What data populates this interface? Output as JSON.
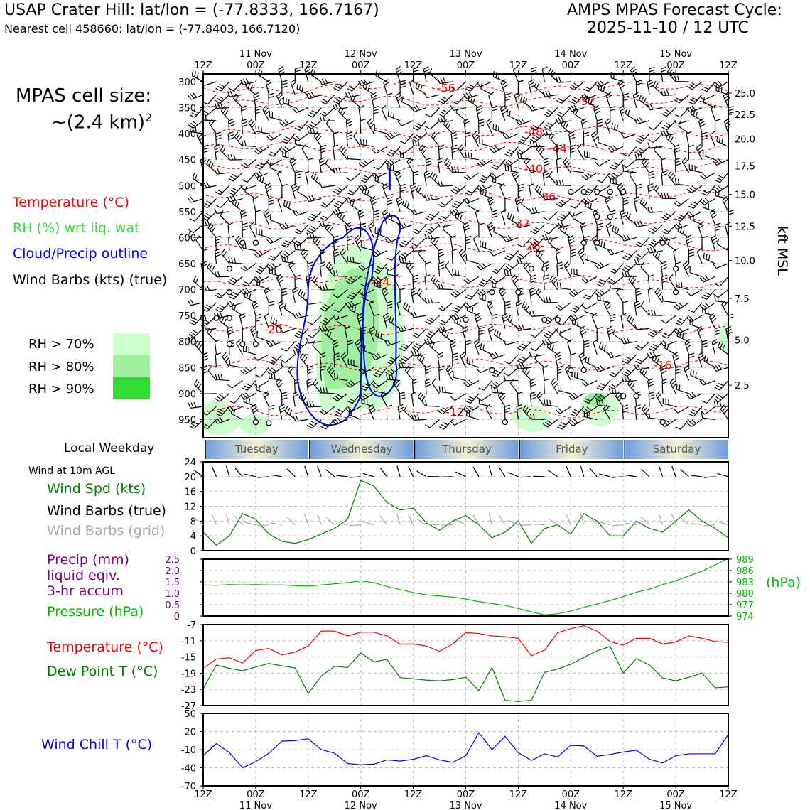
{
  "header": {
    "station": "USAP Crater Hill: lat/lon = (-77.8333, 166.7167)",
    "nearest_cell": "Nearest cell 458660: lat/lon = (-77.8403, 166.7120)",
    "forecast_title": "AMPS MPAS Forecast Cycle:",
    "forecast_cycle": "2025-11-10 / 12 UTC",
    "cell_size_label": "MPAS cell size:",
    "cell_size_value": "~(2.4 km)",
    "cell_size_exp": "2"
  },
  "colors": {
    "temperature": "#ff0000",
    "rh": "#33dd33",
    "cloud": "#0000ff",
    "wind_speed": "#008000",
    "grid_barbs": "#a9a9a9",
    "precip": "#800080",
    "pressure": "#00bb00",
    "dewpoint": "#008000",
    "wind_chill": "#0000ff",
    "rh70": "#ccffcc",
    "rh80": "#a0eea0",
    "rh90": "#33dd33",
    "day_blue": "#6f9de0",
    "day_cream": "#f4f1d0"
  },
  "legend": {
    "temperature": "Temperature (°C)",
    "rh": "RH (%) wrt liq. wat",
    "cloud": "Cloud/Precip outline",
    "wind_barbs": "Wind Barbs (kts) (true)",
    "rh70": "RH > 70%",
    "rh80": "RH > 80%",
    "rh90": "RH > 90%",
    "local_weekday": "Local Weekday",
    "wind10m": "Wind at 10m AGL",
    "wind_spd": "Wind Spd (kts)",
    "wind_barbs_true": "Wind Barbs (true)",
    "wind_barbs_grid": "Wind Barbs (grid)",
    "precip_1": "Precip (mm)",
    "precip_2": "liquid eqiv.",
    "precip_3": "3-hr accum",
    "pressure": "Pressure (hPa)",
    "temp2": "Temperature (°C)",
    "dewpoint": "Dew Point T (°C)",
    "wind_chill": "Wind Chill T (°C)",
    "kft_msl": "kft MSL",
    "hpa": "(hPa)"
  },
  "chart_data": {
    "x_hours": [
      0,
      3,
      6,
      9,
      12,
      15,
      18,
      21,
      24,
      27,
      30,
      33,
      36,
      39,
      42,
      45,
      48,
      51,
      54,
      57,
      60,
      63,
      66,
      69,
      72,
      75,
      78,
      81,
      84,
      87,
      90,
      93,
      96,
      99,
      102,
      105,
      108,
      111,
      114,
      117,
      120
    ],
    "x_range_hours": [
      0,
      120
    ],
    "time_ticks_top": [
      {
        "hour": 0,
        "label": "12Z",
        "date": ""
      },
      {
        "hour": 12,
        "label": "00Z",
        "date": "11 Nov"
      },
      {
        "hour": 24,
        "label": "12Z",
        "date": ""
      },
      {
        "hour": 36,
        "label": "00Z",
        "date": "12 Nov"
      },
      {
        "hour": 48,
        "label": "12Z",
        "date": ""
      },
      {
        "hour": 60,
        "label": "00Z",
        "date": "13 Nov"
      },
      {
        "hour": 72,
        "label": "12Z",
        "date": ""
      },
      {
        "hour": 84,
        "label": "00Z",
        "date": "14 Nov"
      },
      {
        "hour": 96,
        "label": "12Z",
        "date": ""
      },
      {
        "hour": 108,
        "label": "00Z",
        "date": "15 Nov"
      },
      {
        "hour": 120,
        "label": "12Z",
        "date": ""
      }
    ],
    "weekdays": [
      "Tuesday",
      "Wednesday",
      "Thursday",
      "Friday",
      "Saturday"
    ],
    "cross_section": {
      "type": "time-height cross section",
      "pressure_ticks": [
        300,
        350,
        400,
        450,
        500,
        550,
        600,
        650,
        700,
        750,
        800,
        850,
        900,
        950
      ],
      "pressure_range": [
        285,
        985
      ],
      "kft_ticks": [
        {
          "p": 322,
          "label": "25.0"
        },
        {
          "p": 363,
          "label": "22.5"
        },
        {
          "p": 410,
          "label": "20.0"
        },
        {
          "p": 462,
          "label": "17.5"
        },
        {
          "p": 517,
          "label": "15.0"
        },
        {
          "p": 578,
          "label": "12.5"
        },
        {
          "p": 644,
          "label": "10.0"
        },
        {
          "p": 717,
          "label": "7.5"
        },
        {
          "p": 797,
          "label": "5.0"
        },
        {
          "p": 884,
          "label": "2.5"
        }
      ],
      "temperature_contour_labels": [
        {
          "label": "-56",
          "hour": 55.5,
          "p": 312
        },
        {
          "label": "-52",
          "hour": 87.5,
          "p": 337
        },
        {
          "label": "-48",
          "hour": 75.5,
          "p": 396
        },
        {
          "label": "-44",
          "hour": 81,
          "p": 428
        },
        {
          "label": "-40",
          "hour": 75.5,
          "p": 467
        },
        {
          "label": "-36",
          "hour": 78.5,
          "p": 521
        },
        {
          "label": "-32",
          "hour": 72.5,
          "p": 572
        },
        {
          "label": "-28",
          "hour": 75,
          "p": 615
        },
        {
          "label": "-24",
          "hour": 40.5,
          "p": 685
        },
        {
          "label": "-20",
          "hour": 16,
          "p": 776
        },
        {
          "label": "-16",
          "hour": 105,
          "p": 845
        },
        {
          "label": "-12",
          "hour": 57.5,
          "p": 935
        }
      ],
      "calm_markers": [
        {
          "hour": 9,
          "p": 610
        },
        {
          "hour": 12,
          "p": 610
        },
        {
          "hour": 6,
          "p": 660
        },
        {
          "hour": 6,
          "p": 705
        },
        {
          "hour": 0,
          "p": 755
        },
        {
          "hour": 3,
          "p": 755
        },
        {
          "hour": 6,
          "p": 755
        },
        {
          "hour": 6,
          "p": 805
        },
        {
          "hour": 9,
          "p": 805
        },
        {
          "hour": 12,
          "p": 805
        },
        {
          "hour": 12,
          "p": 955
        },
        {
          "hour": 15,
          "p": 957
        },
        {
          "hour": 60,
          "p": 758
        },
        {
          "hour": 66,
          "p": 705
        },
        {
          "hour": 72,
          "p": 705
        },
        {
          "hour": 75,
          "p": 660
        },
        {
          "hour": 78,
          "p": 660
        },
        {
          "hour": 78,
          "p": 758
        },
        {
          "hour": 81,
          "p": 758
        },
        {
          "hour": 84,
          "p": 512
        },
        {
          "hour": 87,
          "p": 512
        },
        {
          "hour": 90,
          "p": 512
        },
        {
          "hour": 93,
          "p": 512
        },
        {
          "hour": 96,
          "p": 512
        },
        {
          "hour": 90,
          "p": 560
        },
        {
          "hour": 93,
          "p": 560
        },
        {
          "hour": 87,
          "p": 610
        },
        {
          "hour": 90,
          "p": 610
        },
        {
          "hour": 105,
          "p": 610
        },
        {
          "hour": 108,
          "p": 660
        },
        {
          "hour": 108,
          "p": 705
        },
        {
          "hour": 66,
          "p": 855
        },
        {
          "hour": 84,
          "p": 855
        },
        {
          "hour": 87,
          "p": 855
        },
        {
          "hour": 96,
          "p": 905
        },
        {
          "hour": 99,
          "p": 905
        },
        {
          "hour": 69,
          "p": 955
        },
        {
          "hour": 105,
          "p": 955
        }
      ]
    },
    "wind_10m": {
      "type": "line",
      "ylabel": "Wind Spd (kts)",
      "y_ticks": [
        0,
        4,
        8,
        12,
        16,
        20,
        24
      ],
      "ylim": [
        0,
        24
      ],
      "values": [
        5,
        1.5,
        4,
        10,
        8.5,
        4.5,
        2.5,
        2,
        3,
        4.5,
        6,
        8.5,
        19,
        17.5,
        13,
        11,
        11.5,
        7.5,
        5.5,
        8,
        9.5,
        7,
        3.5,
        5,
        8,
        2,
        6,
        7,
        4.5,
        10,
        8,
        4,
        4,
        8,
        6,
        5,
        8,
        11,
        8,
        6,
        3.5
      ]
    },
    "pressure": {
      "type": "line",
      "ylabel": "Pressure (hPa)",
      "y_ticks": [
        974,
        977,
        980,
        983,
        986,
        989
      ],
      "ylim": [
        974,
        989
      ],
      "values": [
        982.2,
        982.1,
        982.3,
        982.2,
        982.3,
        982.2,
        982.2,
        982.0,
        981.9,
        982.2,
        982.5,
        982.8,
        983.3,
        982.8,
        981.8,
        981.0,
        980.2,
        979.6,
        979.3,
        979.0,
        978.5,
        977.8,
        977.3,
        976.8,
        976.0,
        975.1,
        974.3,
        974.6,
        975.3,
        976.3,
        977.2,
        978.1,
        979.1,
        980.3,
        981.1,
        982.3,
        983.3,
        984.6,
        985.8,
        987.5,
        989.2
      ]
    },
    "precip": {
      "type": "bar",
      "ylabel": "Precip (mm)",
      "y_ticks": [
        0,
        0.5,
        1.0,
        1.5,
        2.0,
        2.5
      ],
      "ylim": [
        0,
        2.5
      ],
      "values": []
    },
    "temperature_2m": {
      "type": "line",
      "ylabel": "Temperature (°C)",
      "y_ticks": [
        -7,
        -11,
        -15,
        -19,
        -23,
        -27
      ],
      "ylim": [
        -27,
        -7
      ],
      "series": [
        {
          "name": "Temperature (°C)",
          "values": [
            -17.8,
            -15.5,
            -15.2,
            -16.5,
            -13.4,
            -12.9,
            -14.5,
            -13.8,
            -12.3,
            -8.6,
            -8.6,
            -9.8,
            -8.9,
            -8.9,
            -9.8,
            -11.8,
            -11.8,
            -12.3,
            -13.6,
            -11.8,
            -9.0,
            -9.2,
            -9.8,
            -10.0,
            -10.4,
            -14.7,
            -13.3,
            -9.0,
            -8.0,
            -7.3,
            -8.6,
            -11.2,
            -12.1,
            -10.4,
            -10.4,
            -11.8,
            -11.3,
            -9.8,
            -10.4,
            -11.2,
            -11.4
          ]
        },
        {
          "name": "Dew Point T (°C)",
          "values": [
            -22.8,
            -17.0,
            -17.8,
            -18.4,
            -17.5,
            -16.6,
            -17.2,
            -17.7,
            -24.0,
            -19.7,
            -17.3,
            -17.6,
            -14.0,
            -16.2,
            -15.6,
            -20.1,
            -20.4,
            -20.7,
            -20.9,
            -20.6,
            -20.0,
            -23.3,
            -17.6,
            -25.7,
            -26.0,
            -25.7,
            -18.8,
            -18.0,
            -16.8,
            -15.1,
            -13.5,
            -12.4,
            -19.0,
            -15.4,
            -17.0,
            -20.2,
            -20.9,
            -20.0,
            -19.0,
            -22.6,
            -22.4
          ]
        }
      ]
    },
    "wind_chill": {
      "type": "line",
      "ylabel": "Wind Chill T (°C)",
      "y_ticks": [
        50,
        20,
        -10,
        -40,
        -70
      ],
      "ylim": [
        -70,
        50
      ],
      "values": [
        -20,
        0,
        -15,
        -40,
        -30,
        -16,
        4,
        5,
        8,
        -10,
        -16,
        -33,
        -35,
        -34,
        -27,
        -29,
        -26,
        -20,
        -27,
        -31,
        -20,
        18,
        -10,
        12,
        -15,
        -28,
        -17,
        -22,
        -3,
        -4,
        -21,
        -18,
        -14,
        -11,
        -26,
        -32,
        -20,
        -17,
        -17,
        -17,
        15
      ]
    }
  }
}
